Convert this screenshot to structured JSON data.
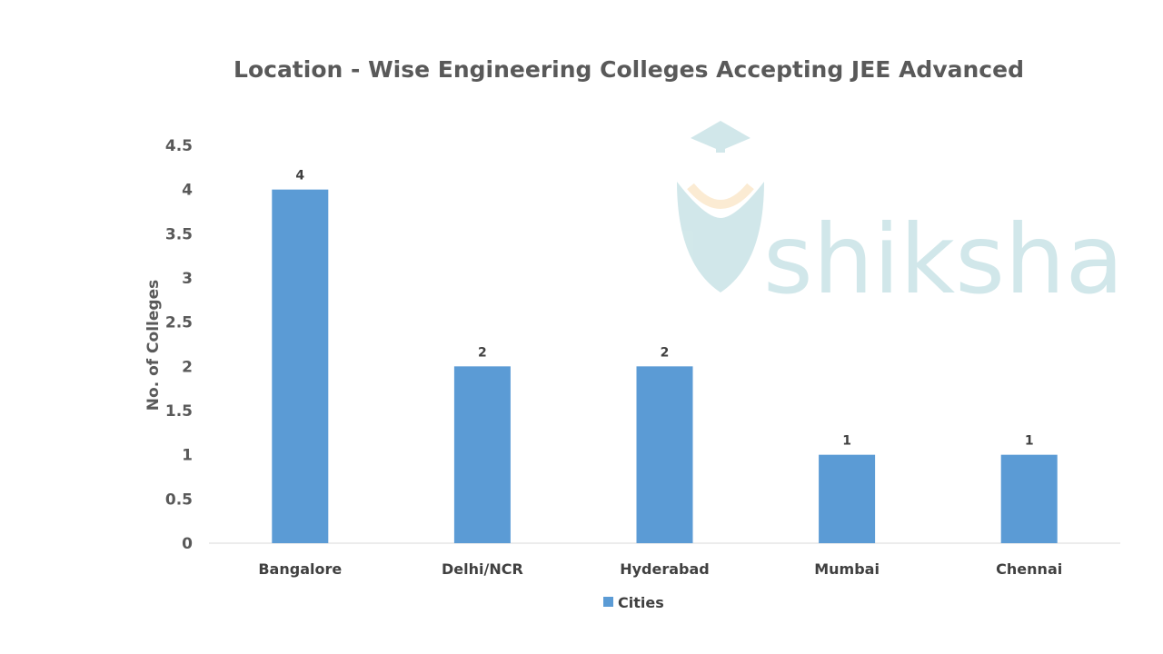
{
  "chart_data": {
    "type": "bar",
    "title": "Location - Wise Engineering Colleges Accepting JEE Advanced",
    "xlabel": "",
    "ylabel": "No. of Colleges",
    "categories": [
      "Bangalore",
      "Delhi/NCR",
      "Hyderabad",
      "Mumbai",
      "Chennai"
    ],
    "series": [
      {
        "name": "Cities",
        "values": [
          4,
          2,
          2,
          1,
          1
        ],
        "color": "#5B9BD5"
      }
    ],
    "ylim": [
      0,
      4.5
    ],
    "yticks": [
      "0",
      "0.5",
      "1",
      "1.5",
      "2",
      "2.5",
      "3",
      "3.5",
      "4",
      "4.5"
    ],
    "data_labels": [
      "4",
      "2",
      "2",
      "1",
      "1"
    ],
    "grid": false,
    "legend": "bottom"
  },
  "watermark": {
    "text": "shiksha",
    "color": "#CDE5E8"
  }
}
